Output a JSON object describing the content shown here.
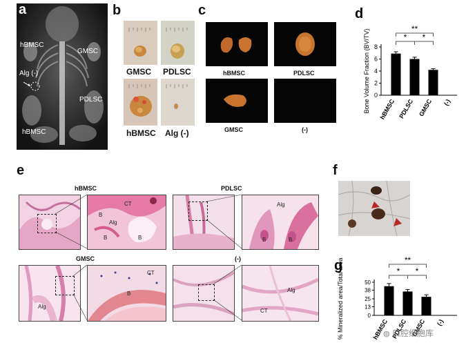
{
  "panels": {
    "a": {
      "letter": "a",
      "labels": [
        "hBMSC",
        "GMSC",
        "Alg (-)",
        "PDLSC",
        "hBMSC"
      ]
    },
    "b": {
      "letter": "b",
      "labels": [
        "GMSC",
        "PDLSC",
        "hBMSC",
        "Alg (-)"
      ]
    },
    "c": {
      "letter": "c",
      "labels": [
        "hBMSC",
        "PDLSC",
        "GMSC",
        "(-)"
      ]
    },
    "e": {
      "letter": "e",
      "groups": [
        "hBMSC",
        "PDLSC",
        "GMSC",
        "(-)"
      ],
      "annotations": [
        "CT",
        "B",
        "Alg",
        "B",
        "B",
        "Alg",
        "B",
        "B",
        "CT",
        "B",
        "Alg",
        "Alg",
        "CT"
      ]
    },
    "f": {
      "letter": "f"
    }
  },
  "chart_data": [
    {
      "panel": "d",
      "letter": "d",
      "type": "bar",
      "categories": [
        "hBMSC",
        "PDLSC",
        "GMSC",
        "(-)"
      ],
      "values": [
        6.9,
        6.0,
        4.2,
        0
      ],
      "errors": [
        0.3,
        0.3,
        0.2,
        0
      ],
      "ylabel": "Bone Volume Fraction (BV/TV)",
      "yticks": [
        "0",
        "2",
        "4",
        "6",
        "8"
      ],
      "ylim": [
        0,
        8
      ],
      "significance": [
        "*",
        "*",
        "**"
      ]
    },
    {
      "panel": "g",
      "letter": "g",
      "type": "bar",
      "categories": [
        "hBMSC",
        "PDLSC",
        "GMSC",
        "(-)"
      ],
      "values": [
        44,
        36,
        28,
        0
      ],
      "errors": [
        4,
        3,
        3,
        0
      ],
      "ylabel": "% Mineralized area/Total area",
      "yticks": [
        "0",
        "13",
        "25",
        "38",
        "50"
      ],
      "ylim": [
        0,
        50
      ],
      "significance": [
        "*",
        "*",
        "**"
      ]
    }
  ],
  "watermark": "口腔细胞库"
}
